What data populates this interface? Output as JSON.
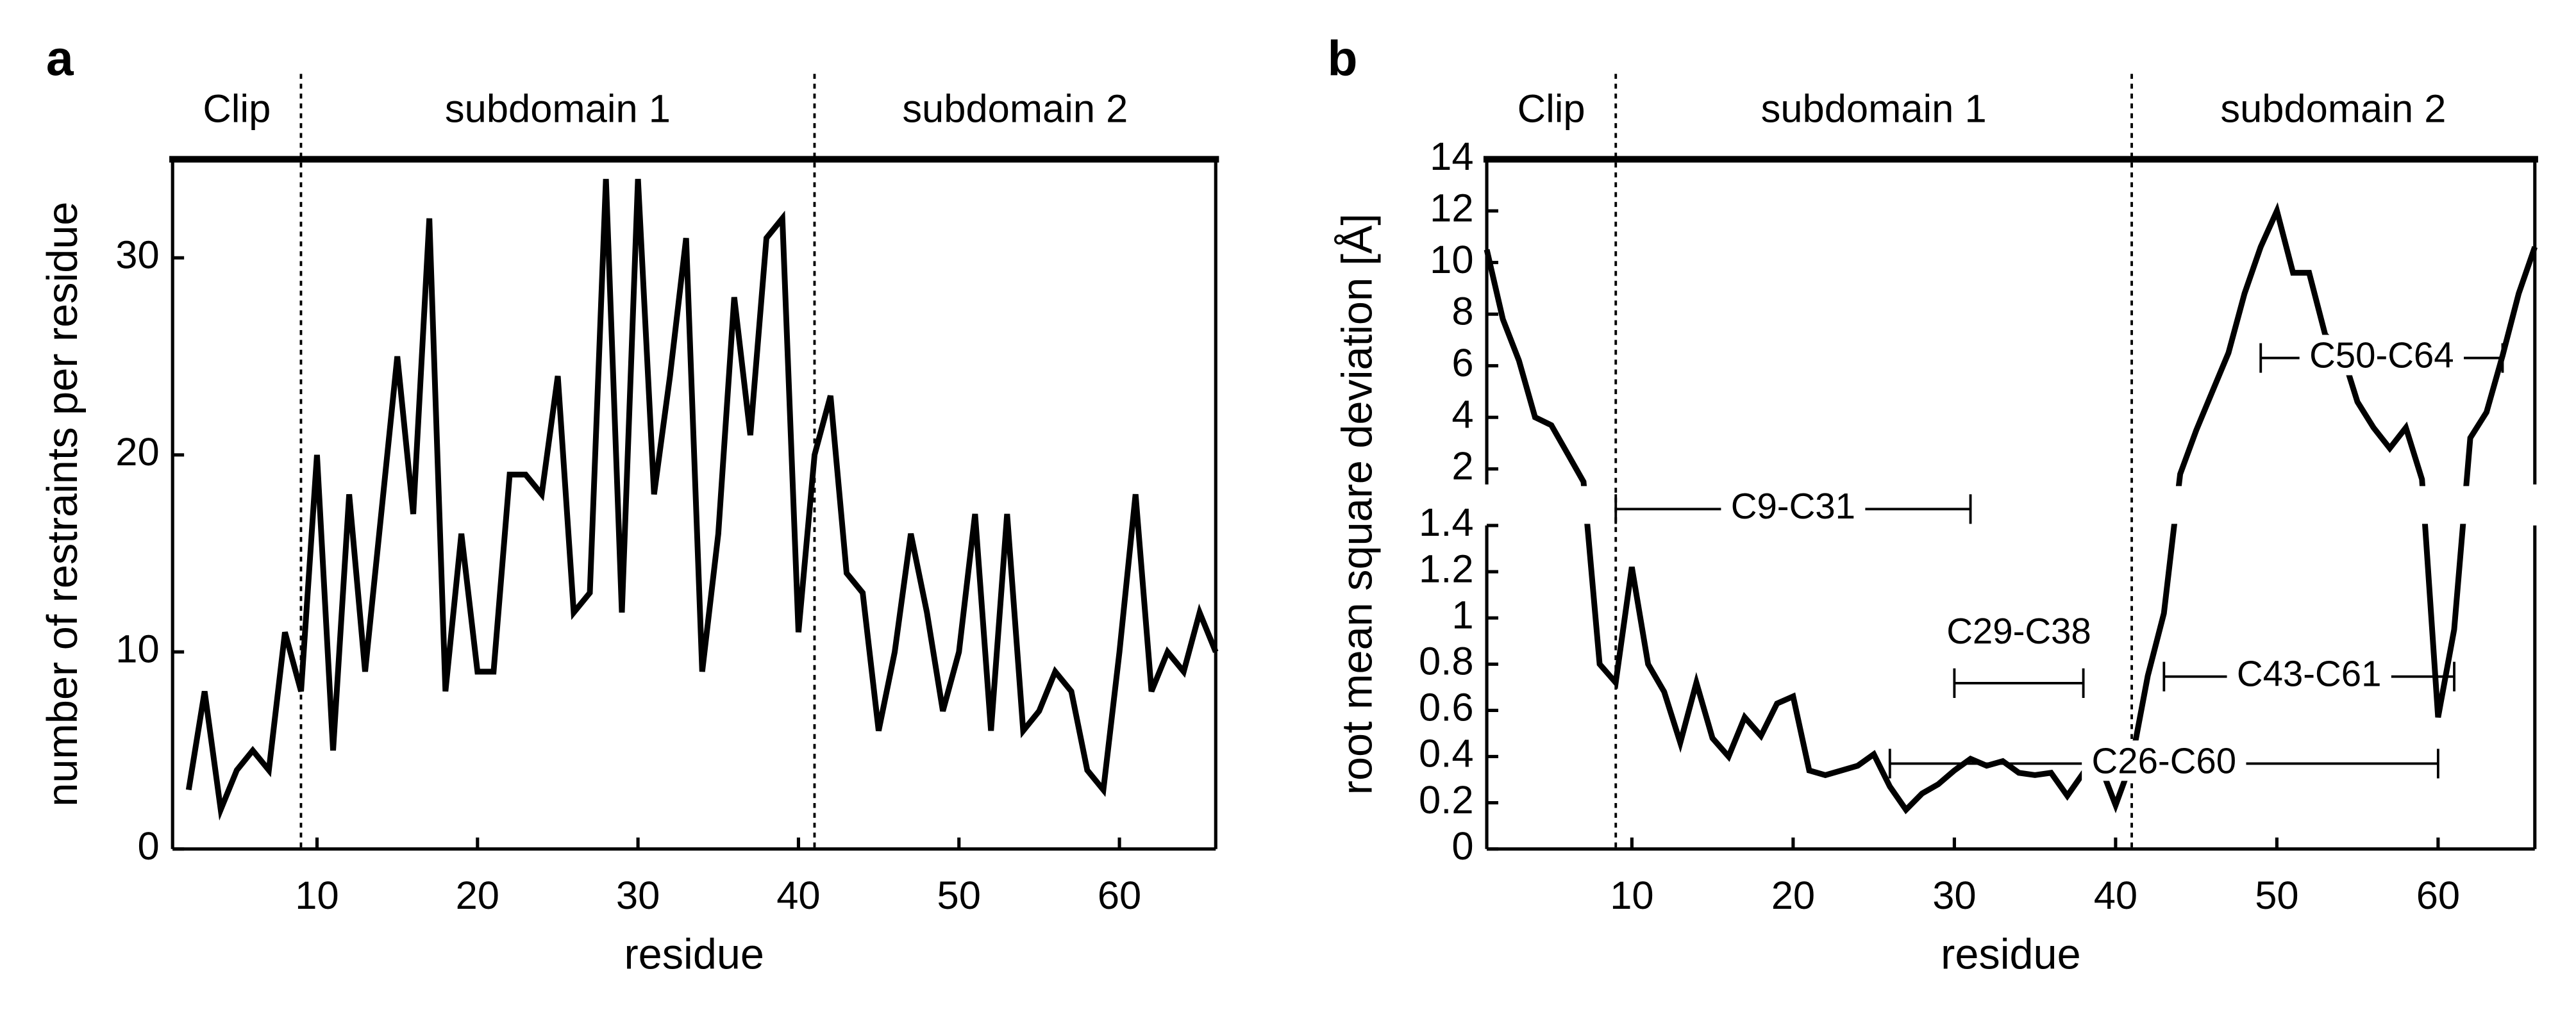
{
  "chart_data": [
    {
      "type": "line",
      "panel": "a",
      "xlabel": "residue",
      "ylabel": "number of restraints per residue",
      "regions": [
        "Clip",
        "subdomain 1",
        "subdomain 2"
      ],
      "dividers": [
        9,
        41
      ],
      "xlim": [
        1,
        66
      ],
      "xticks": [
        10,
        20,
        30,
        40,
        50,
        60
      ],
      "ylim": [
        0,
        35
      ],
      "yticks": [
        0,
        10,
        20,
        30
      ],
      "color": "#000000",
      "x": [
        2,
        3,
        4,
        5,
        6,
        7,
        8,
        9,
        10,
        11,
        12,
        13,
        14,
        15,
        16,
        17,
        18,
        19,
        20,
        21,
        22,
        23,
        24,
        25,
        26,
        27,
        28,
        29,
        30,
        31,
        32,
        33,
        34,
        35,
        36,
        37,
        38,
        39,
        40,
        41,
        42,
        43,
        44,
        45,
        46,
        47,
        48,
        49,
        50,
        51,
        52,
        53,
        54,
        55,
        56,
        57,
        58,
        59,
        60,
        61,
        62,
        63,
        64,
        65,
        66
      ],
      "values": [
        3,
        8,
        2,
        4,
        5,
        4,
        11,
        8,
        20,
        5,
        18,
        9,
        17,
        25,
        17,
        32,
        8,
        16,
        9,
        9,
        19,
        19,
        18,
        24,
        12,
        13,
        34,
        12,
        34,
        18,
        24,
        31,
        9,
        16,
        28,
        21,
        31,
        32,
        11,
        20,
        23,
        14,
        13,
        6,
        10,
        16,
        12,
        7,
        10,
        17,
        6,
        17,
        6,
        7,
        9,
        8,
        4,
        3,
        10,
        18,
        8,
        10,
        9,
        12,
        10
      ]
    },
    {
      "type": "broken_line",
      "panel": "b",
      "xlabel": "residue",
      "ylabel": "root mean square deviation [Å]",
      "regions": [
        "Clip",
        "subdomain 1",
        "subdomain 2"
      ],
      "dividers": [
        9,
        41
      ],
      "xlim": [
        1,
        66
      ],
      "xticks": [
        10,
        20,
        30,
        40,
        50,
        60
      ],
      "ylim": [
        0,
        14
      ],
      "y_break": 1.4,
      "yticks": [
        0,
        0.2,
        0.4,
        0.6,
        0.8,
        1,
        1.2,
        1.4,
        2,
        4,
        6,
        8,
        10,
        12,
        14
      ],
      "color": "#000000",
      "x": [
        1,
        2,
        3,
        4,
        5,
        6,
        7,
        8,
        9,
        10,
        11,
        12,
        13,
        14,
        15,
        16,
        17,
        18,
        19,
        20,
        21,
        22,
        23,
        24,
        25,
        26,
        27,
        28,
        29,
        30,
        31,
        32,
        33,
        34,
        35,
        36,
        37,
        38,
        39,
        40,
        41,
        42,
        43,
        44,
        45,
        46,
        47,
        48,
        49,
        50,
        51,
        52,
        53,
        54,
        55,
        56,
        57,
        58,
        59,
        60,
        61,
        62,
        63,
        64,
        65,
        66
      ],
      "values": [
        10.5,
        7.8,
        6.2,
        4,
        3.7,
        2.6,
        1.5,
        0.8,
        0.72,
        1.22,
        0.8,
        0.68,
        0.46,
        0.72,
        0.48,
        0.4,
        0.57,
        0.49,
        0.63,
        0.66,
        0.34,
        0.32,
        0.34,
        0.36,
        0.41,
        0.27,
        0.17,
        0.24,
        0.28,
        0.34,
        0.39,
        0.36,
        0.38,
        0.33,
        0.32,
        0.33,
        0.23,
        0.33,
        0.37,
        0.19,
        0.38,
        0.75,
        1.02,
        1.8,
        3.5,
        5,
        6.5,
        8.8,
        10.6,
        12,
        9.6,
        9.6,
        7.2,
        6.6,
        4.6,
        3.6,
        2.8,
        3.6,
        1.6,
        0.57,
        0.95,
        3.2,
        4.2,
        6.4,
        8.8,
        10.6
      ],
      "bonds": [
        {
          "label": "C9-C31",
          "start": 9,
          "end": 31
        },
        {
          "label": "C29-C38",
          "start": 30,
          "end": 38
        },
        {
          "label": "C50-C64",
          "start": 49,
          "end": 64
        },
        {
          "label": "C43-C61",
          "start": 43,
          "end": 61
        },
        {
          "label": "C26-C60",
          "start": 26,
          "end": 60
        }
      ]
    }
  ]
}
